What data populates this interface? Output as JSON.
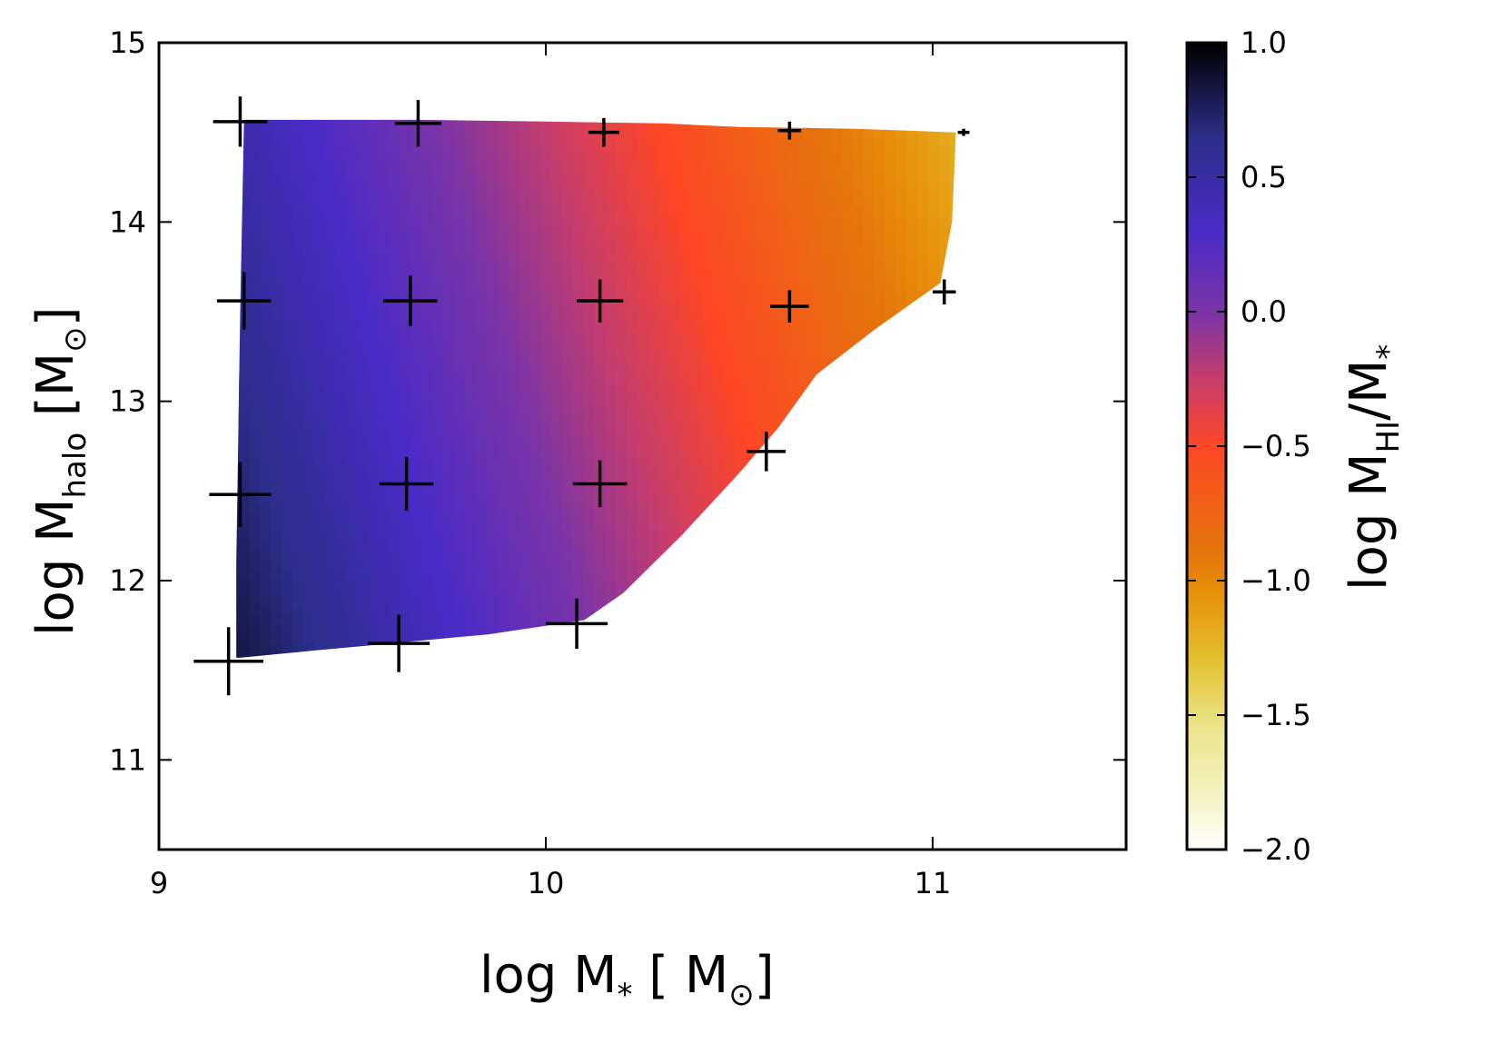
{
  "chart_data": {
    "type": "heatmap",
    "x_axis": {
      "label_main": "log M",
      "label_sub": "*",
      "label_open": " [ M",
      "label_unit_sub": "⊙",
      "label_close": "]",
      "range": [
        9,
        11.5
      ],
      "ticks": [
        9,
        10,
        11
      ],
      "tick_labels": [
        "9",
        "10",
        "11"
      ]
    },
    "y_axis": {
      "label_main": "log M",
      "label_sub": "halo",
      "label_open": "  [M",
      "label_unit_sub": "⊙",
      "label_close": "]",
      "range": [
        10.5,
        15
      ],
      "ticks": [
        11,
        12,
        13,
        14,
        15
      ],
      "tick_labels": [
        "11",
        "12",
        "13",
        "14",
        "15"
      ]
    },
    "colorbar": {
      "label_main": "log M",
      "label_sub": "HI",
      "label_rest": "/M",
      "label_sub2": "*",
      "range": [
        -2.0,
        1.0
      ],
      "ticks": [
        1.0,
        0.5,
        0.0,
        -0.5,
        -1.0,
        -1.5,
        -2.0
      ],
      "tick_labels": [
        "1.0",
        "0.5",
        "0.0",
        "−0.5",
        "−1.0",
        "−1.5",
        "−2.0"
      ],
      "colors": [
        "#ffffff",
        "#f4f2c2",
        "#ebe48c",
        "#e2c12e",
        "#e8900a",
        "#e4750a",
        "#ff4626",
        "#c73d6c",
        "#7b34a8",
        "#4a2bc8",
        "#2b2e8a",
        "#000000"
      ],
      "color_stops": [
        -2.0,
        -1.8,
        -1.55,
        -1.3,
        -1.05,
        -0.9,
        -0.5,
        -0.25,
        0.0,
        0.3,
        0.65,
        1.0
      ]
    },
    "region_boundary": [
      [
        9.21,
        11.57
      ],
      [
        9.4,
        11.61
      ],
      [
        9.6,
        11.65
      ],
      [
        9.85,
        11.7
      ],
      [
        10.1,
        11.78
      ],
      [
        10.2,
        11.93
      ],
      [
        10.35,
        12.25
      ],
      [
        10.5,
        12.6
      ],
      [
        10.6,
        12.85
      ],
      [
        10.7,
        13.15
      ],
      [
        10.85,
        13.4
      ],
      [
        11.02,
        13.66
      ],
      [
        11.05,
        14.0
      ],
      [
        11.06,
        14.5
      ],
      [
        10.8,
        14.52
      ],
      [
        10.5,
        14.53
      ],
      [
        10.3,
        14.55
      ],
      [
        10.0,
        14.56
      ],
      [
        9.68,
        14.57
      ],
      [
        9.22,
        14.57
      ],
      [
        9.21,
        13.5
      ],
      [
        9.2,
        12.1
      ],
      [
        9.2,
        11.57
      ]
    ],
    "field_model": {
      "base": 0.78,
      "x_coef": -0.9,
      "y_coef": -0.12,
      "y_ref": 12.0,
      "x_ref": 9.2
    },
    "crosses": [
      {
        "x": 9.18,
        "y": 11.55,
        "xerr": 0.09,
        "yerr": 0.19
      },
      {
        "x": 9.62,
        "y": 11.65,
        "xerr": 0.08,
        "yerr": 0.16
      },
      {
        "x": 10.08,
        "y": 11.76,
        "xerr": 0.08,
        "yerr": 0.14
      },
      {
        "x": 9.21,
        "y": 12.48,
        "xerr": 0.08,
        "yerr": 0.18
      },
      {
        "x": 9.64,
        "y": 12.54,
        "xerr": 0.07,
        "yerr": 0.15
      },
      {
        "x": 10.14,
        "y": 12.54,
        "xerr": 0.07,
        "yerr": 0.13
      },
      {
        "x": 10.57,
        "y": 12.72,
        "xerr": 0.05,
        "yerr": 0.11
      },
      {
        "x": 9.22,
        "y": 13.56,
        "xerr": 0.07,
        "yerr": 0.16
      },
      {
        "x": 9.65,
        "y": 13.56,
        "xerr": 0.07,
        "yerr": 0.14
      },
      {
        "x": 10.14,
        "y": 13.56,
        "xerr": 0.06,
        "yerr": 0.12
      },
      {
        "x": 10.63,
        "y": 13.53,
        "xerr": 0.05,
        "yerr": 0.09
      },
      {
        "x": 11.03,
        "y": 13.61,
        "xerr": 0.03,
        "yerr": 0.07
      },
      {
        "x": 9.21,
        "y": 14.56,
        "xerr": 0.07,
        "yerr": 0.14
      },
      {
        "x": 9.67,
        "y": 14.55,
        "xerr": 0.06,
        "yerr": 0.13
      },
      {
        "x": 10.15,
        "y": 14.5,
        "xerr": 0.04,
        "yerr": 0.08
      },
      {
        "x": 10.63,
        "y": 14.51,
        "xerr": 0.03,
        "yerr": 0.05
      },
      {
        "x": 11.08,
        "y": 14.5,
        "xerr": 0.015,
        "yerr": 0.02
      }
    ]
  }
}
